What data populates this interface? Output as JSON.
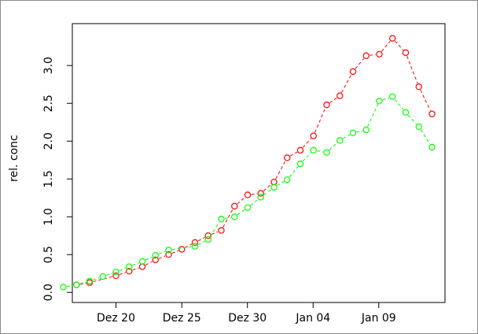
{
  "chart_data": {
    "type": "line",
    "title": "",
    "xlabel": "",
    "ylabel": "rel. conc",
    "x_ticks": [
      "Dez 20",
      "Dez 25",
      "Dez 30",
      "Jan 04",
      "Jan 09"
    ],
    "y_ticks": [
      "0.0",
      "0.5",
      "1.0",
      "1.5",
      "2.0",
      "2.5",
      "3.0"
    ],
    "ylim": [
      0,
      3.4
    ],
    "grid": false,
    "series": [
      {
        "color": "#ff0000",
        "marker": "open-circle",
        "line": "dashed",
        "points": [
          [
            "2020-12-17",
            0.1
          ],
          [
            "2020-12-18",
            0.13
          ],
          [
            "2020-12-20",
            0.22
          ],
          [
            "2020-12-21",
            0.28
          ],
          [
            "2020-12-22",
            0.34
          ],
          [
            "2020-12-23",
            0.43
          ],
          [
            "2020-12-24",
            0.5
          ],
          [
            "2020-12-25",
            0.57
          ],
          [
            "2020-12-26",
            0.66
          ],
          [
            "2020-12-27",
            0.75
          ],
          [
            "2020-12-28",
            0.82
          ],
          [
            "2020-12-29",
            1.14
          ],
          [
            "2020-12-30",
            1.29
          ],
          [
            "2020-12-31",
            1.31
          ],
          [
            "2021-01-01",
            1.46
          ],
          [
            "2021-01-02",
            1.78
          ],
          [
            "2021-01-03",
            1.88
          ],
          [
            "2021-01-04",
            2.07
          ],
          [
            "2021-01-05",
            2.48
          ],
          [
            "2021-01-06",
            2.6
          ],
          [
            "2021-01-07",
            2.92
          ],
          [
            "2021-01-08",
            3.13
          ],
          [
            "2021-01-09",
            3.15
          ],
          [
            "2021-01-10",
            3.36
          ],
          [
            "2021-01-11",
            3.17
          ],
          [
            "2021-01-12",
            2.72
          ],
          [
            "2021-01-13",
            2.36
          ]
        ]
      },
      {
        "color": "#00ff00",
        "marker": "open-circle",
        "line": "dashed",
        "points": [
          [
            "2020-12-16",
            0.07
          ],
          [
            "2020-12-17",
            0.1
          ],
          [
            "2020-12-18",
            0.15
          ],
          [
            "2020-12-19",
            0.21
          ],
          [
            "2020-12-20",
            0.27
          ],
          [
            "2020-12-21",
            0.34
          ],
          [
            "2020-12-22",
            0.41
          ],
          [
            "2020-12-23",
            0.49
          ],
          [
            "2020-12-24",
            0.56
          ],
          [
            "2020-12-26",
            0.61
          ],
          [
            "2020-12-27",
            0.7
          ],
          [
            "2020-12-28",
            0.97
          ],
          [
            "2020-12-29",
            1.0
          ],
          [
            "2020-12-30",
            1.12
          ],
          [
            "2020-12-31",
            1.26
          ],
          [
            "2021-01-01",
            1.39
          ],
          [
            "2021-01-02",
            1.49
          ],
          [
            "2021-01-03",
            1.7
          ],
          [
            "2021-01-04",
            1.88
          ],
          [
            "2021-01-05",
            1.85
          ],
          [
            "2021-01-06",
            2.01
          ],
          [
            "2021-01-07",
            2.11
          ],
          [
            "2021-01-08",
            2.15
          ],
          [
            "2021-01-09",
            2.53
          ],
          [
            "2021-01-10",
            2.59
          ],
          [
            "2021-01-11",
            2.38
          ],
          [
            "2021-01-12",
            2.19
          ],
          [
            "2021-01-13",
            1.92
          ]
        ]
      }
    ]
  }
}
